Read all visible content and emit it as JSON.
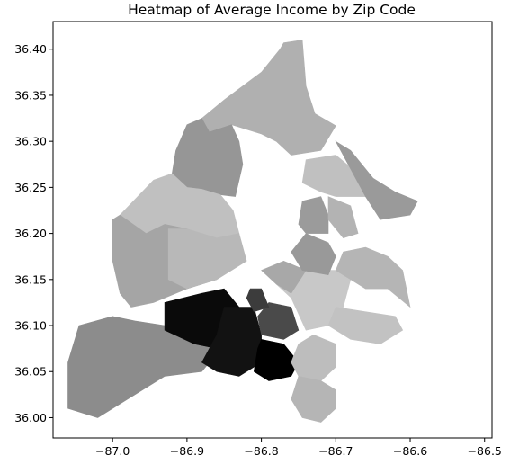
{
  "chart_data": {
    "type": "heatmap",
    "title": "Heatmap of Average Income by Zip Code",
    "xlabel": "",
    "ylabel": "",
    "xlim": [
      -87.08,
      -86.49
    ],
    "ylim": [
      35.978,
      36.43
    ],
    "x_ticks": [
      -87.0,
      -86.9,
      -86.8,
      -86.7,
      -86.6,
      -86.5
    ],
    "x_tick_labels": [
      "−87.0",
      "−86.9",
      "−86.8",
      "−86.7",
      "−86.6",
      "−86.5"
    ],
    "y_ticks": [
      36.0,
      36.05,
      36.1,
      36.15,
      36.2,
      36.25,
      36.3,
      36.35,
      36.4
    ],
    "y_tick_labels": [
      "36.00",
      "36.05",
      "36.10",
      "36.15",
      "36.20",
      "36.25",
      "36.30",
      "36.35",
      "36.40"
    ],
    "grid": false,
    "colormap": "greys",
    "regions": [
      {
        "shade": "#b0b0b0",
        "polygon": [
          [
            -86.775,
            36.4
          ],
          [
            -86.77,
            36.407
          ],
          [
            -86.745,
            36.41
          ],
          [
            -86.74,
            36.36
          ],
          [
            -86.728,
            36.33
          ],
          [
            -86.7,
            36.317
          ],
          [
            -86.72,
            36.29
          ],
          [
            -86.76,
            36.285
          ],
          [
            -86.78,
            36.3
          ],
          [
            -86.8,
            36.308
          ],
          [
            -86.84,
            36.318
          ],
          [
            -86.87,
            36.31
          ],
          [
            -86.88,
            36.325
          ],
          [
            -86.85,
            36.345
          ],
          [
            -86.8,
            36.375
          ]
        ]
      },
      {
        "shade": "#969696",
        "polygon": [
          [
            -86.88,
            36.325
          ],
          [
            -86.87,
            36.31
          ],
          [
            -86.84,
            36.318
          ],
          [
            -86.83,
            36.3
          ],
          [
            -86.825,
            36.275
          ],
          [
            -86.835,
            36.24
          ],
          [
            -86.855,
            36.242
          ],
          [
            -86.88,
            36.248
          ],
          [
            -86.9,
            36.25
          ],
          [
            -86.92,
            36.265
          ],
          [
            -86.915,
            36.29
          ],
          [
            -86.9,
            36.318
          ]
        ]
      },
      {
        "shade": "#c0c0c0",
        "polygon": [
          [
            -86.92,
            36.265
          ],
          [
            -86.9,
            36.25
          ],
          [
            -86.88,
            36.248
          ],
          [
            -86.855,
            36.242
          ],
          [
            -86.838,
            36.225
          ],
          [
            -86.83,
            36.2
          ],
          [
            -86.86,
            36.195
          ],
          [
            -86.9,
            36.205
          ],
          [
            -86.93,
            36.21
          ],
          [
            -86.955,
            36.2
          ],
          [
            -86.99,
            36.22
          ],
          [
            -86.945,
            36.258
          ]
        ]
      },
      {
        "shade": "#a5a5a5",
        "polygon": [
          [
            -87.0,
            36.215
          ],
          [
            -86.99,
            36.22
          ],
          [
            -86.955,
            36.2
          ],
          [
            -86.93,
            36.21
          ],
          [
            -86.9,
            36.205
          ],
          [
            -86.87,
            36.185
          ],
          [
            -86.86,
            36.15
          ],
          [
            -86.9,
            36.14
          ],
          [
            -86.945,
            36.125
          ],
          [
            -86.975,
            36.12
          ],
          [
            -86.99,
            36.135
          ],
          [
            -87.0,
            36.17
          ]
        ]
      },
      {
        "shade": "#b8b8b8",
        "polygon": [
          [
            -86.925,
            36.205
          ],
          [
            -86.9,
            36.205
          ],
          [
            -86.86,
            36.195
          ],
          [
            -86.83,
            36.2
          ],
          [
            -86.82,
            36.17
          ],
          [
            -86.86,
            36.15
          ],
          [
            -86.9,
            36.14
          ],
          [
            -86.925,
            36.15
          ]
        ]
      },
      {
        "shade": "#8c8c8c",
        "polygon": [
          [
            -87.045,
            36.1
          ],
          [
            -87.0,
            36.11
          ],
          [
            -86.97,
            36.105
          ],
          [
            -86.93,
            36.1
          ],
          [
            -86.88,
            36.085
          ],
          [
            -86.86,
            36.07
          ],
          [
            -86.88,
            36.05
          ],
          [
            -86.93,
            36.045
          ],
          [
            -86.98,
            36.02
          ],
          [
            -87.02,
            36.0
          ],
          [
            -87.06,
            36.01
          ],
          [
            -87.06,
            36.06
          ]
        ]
      },
      {
        "shade": "#0a0a0a",
        "polygon": [
          [
            -86.93,
            36.125
          ],
          [
            -86.88,
            36.135
          ],
          [
            -86.85,
            36.14
          ],
          [
            -86.83,
            36.12
          ],
          [
            -86.84,
            36.09
          ],
          [
            -86.86,
            36.075
          ],
          [
            -86.89,
            36.08
          ],
          [
            -86.93,
            36.095
          ]
        ]
      },
      {
        "shade": "#121212",
        "polygon": [
          [
            -86.85,
            36.12
          ],
          [
            -86.81,
            36.12
          ],
          [
            -86.8,
            36.09
          ],
          [
            -86.8,
            36.06
          ],
          [
            -86.83,
            36.045
          ],
          [
            -86.86,
            36.05
          ],
          [
            -86.88,
            36.06
          ],
          [
            -86.86,
            36.09
          ]
        ]
      },
      {
        "shade": "#000000",
        "polygon": [
          [
            -86.8,
            36.085
          ],
          [
            -86.77,
            36.08
          ],
          [
            -86.75,
            36.06
          ],
          [
            -86.76,
            36.045
          ],
          [
            -86.79,
            36.04
          ],
          [
            -86.81,
            36.05
          ],
          [
            -86.805,
            36.075
          ]
        ]
      },
      {
        "shade": "#4a4a4a",
        "polygon": [
          [
            -86.79,
            36.125
          ],
          [
            -86.76,
            36.12
          ],
          [
            -86.75,
            36.095
          ],
          [
            -86.77,
            36.085
          ],
          [
            -86.8,
            36.09
          ],
          [
            -86.805,
            36.11
          ]
        ]
      },
      {
        "shade": "#3c3c3c",
        "polygon": [
          [
            -86.815,
            36.14
          ],
          [
            -86.8,
            36.14
          ],
          [
            -86.79,
            36.12
          ],
          [
            -86.81,
            36.115
          ],
          [
            -86.82,
            36.13
          ]
        ]
      },
      {
        "shade": "#c8c8c8",
        "polygon": [
          [
            -86.74,
            36.095
          ],
          [
            -86.76,
            36.13
          ],
          [
            -86.78,
            36.145
          ],
          [
            -86.745,
            36.16
          ],
          [
            -86.7,
            36.16
          ],
          [
            -86.68,
            36.15
          ],
          [
            -86.69,
            36.12
          ],
          [
            -86.71,
            36.1
          ]
        ]
      },
      {
        "shade": "#a8a8a8",
        "polygon": [
          [
            -86.78,
            36.145
          ],
          [
            -86.76,
            36.135
          ],
          [
            -86.74,
            36.16
          ],
          [
            -86.77,
            36.17
          ],
          [
            -86.8,
            36.16
          ]
        ]
      },
      {
        "shade": "#c2c2c2",
        "polygon": [
          [
            -86.7,
            36.12
          ],
          [
            -86.66,
            36.115
          ],
          [
            -86.62,
            36.11
          ],
          [
            -86.61,
            36.095
          ],
          [
            -86.64,
            36.08
          ],
          [
            -86.68,
            36.085
          ],
          [
            -86.71,
            36.1
          ]
        ]
      },
      {
        "shade": "#b5b5b5",
        "polygon": [
          [
            -86.7,
            36.16
          ],
          [
            -86.68,
            36.15
          ],
          [
            -86.66,
            36.14
          ],
          [
            -86.63,
            36.14
          ],
          [
            -86.6,
            36.12
          ],
          [
            -86.61,
            36.16
          ],
          [
            -86.63,
            36.175
          ],
          [
            -86.66,
            36.185
          ],
          [
            -86.69,
            36.18
          ]
        ]
      },
      {
        "shade": "#bdbdbd",
        "polygon": [
          [
            -86.73,
            36.09
          ],
          [
            -86.7,
            36.08
          ],
          [
            -86.7,
            36.055
          ],
          [
            -86.72,
            36.04
          ],
          [
            -86.75,
            36.045
          ],
          [
            -86.76,
            36.06
          ],
          [
            -86.75,
            36.08
          ]
        ]
      },
      {
        "shade": "#b5b5b5",
        "polygon": [
          [
            -86.75,
            36.045
          ],
          [
            -86.72,
            36.04
          ],
          [
            -86.7,
            36.03
          ],
          [
            -86.7,
            36.01
          ],
          [
            -86.72,
            35.995
          ],
          [
            -86.745,
            36.0
          ],
          [
            -86.76,
            36.02
          ]
        ]
      },
      {
        "shade": "#999999",
        "polygon": [
          [
            -86.74,
            36.2
          ],
          [
            -86.71,
            36.19
          ],
          [
            -86.7,
            36.175
          ],
          [
            -86.71,
            36.155
          ],
          [
            -86.745,
            36.16
          ],
          [
            -86.76,
            36.18
          ]
        ]
      },
      {
        "shade": "#9b9b9b",
        "polygon": [
          [
            -86.745,
            36.235
          ],
          [
            -86.72,
            36.24
          ],
          [
            -86.71,
            36.22
          ],
          [
            -86.71,
            36.2
          ],
          [
            -86.74,
            36.2
          ],
          [
            -86.75,
            36.21
          ]
        ]
      },
      {
        "shade": "#c0c0c0",
        "polygon": [
          [
            -86.74,
            36.28
          ],
          [
            -86.7,
            36.285
          ],
          [
            -86.67,
            36.265
          ],
          [
            -86.66,
            36.24
          ],
          [
            -86.7,
            36.24
          ],
          [
            -86.72,
            36.245
          ],
          [
            -86.745,
            36.255
          ]
        ]
      },
      {
        "shade": "#b3b3b3",
        "polygon": [
          [
            -86.71,
            36.24
          ],
          [
            -86.68,
            36.23
          ],
          [
            -86.67,
            36.2
          ],
          [
            -86.69,
            36.195
          ],
          [
            -86.71,
            36.215
          ]
        ]
      },
      {
        "shade": "#9a9a9a",
        "polygon": [
          [
            -86.7,
            36.3
          ],
          [
            -86.68,
            36.29
          ],
          [
            -86.65,
            36.26
          ],
          [
            -86.62,
            36.245
          ],
          [
            -86.59,
            36.235
          ],
          [
            -86.6,
            36.22
          ],
          [
            -86.64,
            36.215
          ],
          [
            -86.66,
            36.24
          ],
          [
            -86.68,
            36.27
          ]
        ]
      }
    ]
  }
}
